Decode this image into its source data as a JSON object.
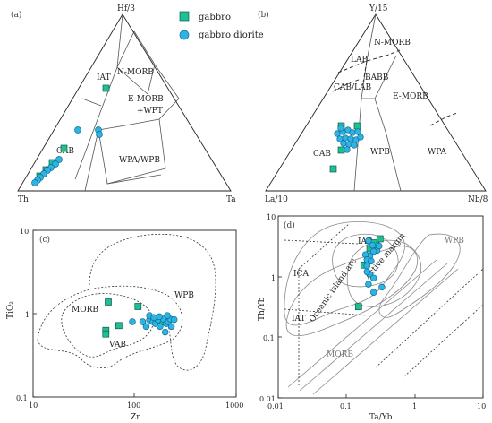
{
  "legend": {
    "gabbro": "gabbro",
    "gabbro_diorite": "gabbro diorite"
  },
  "colors": {
    "gabbro": "#1fbf94",
    "gabbro_diorite": "#2fb3e3"
  },
  "panel_a": {
    "label": "(a)",
    "apex_top": "Hf/3",
    "apex_left": "Th",
    "apex_right": "Ta",
    "fields": {
      "iat": "IAT",
      "nmorb": "N-MORB",
      "emorb": "E-MORB",
      "wpt": "+WPT",
      "cab": "CAB",
      "wpawpb": "WPA/WPB"
    }
  },
  "panel_b": {
    "label": "(b)",
    "apex_top": "Y/15",
    "apex_left": "La/10",
    "apex_right": "Nb/8",
    "fields": {
      "nmorb": "N-MORB",
      "lab": "LAB",
      "babb": "BABB",
      "cablab": "CAB/LAB",
      "emorb": "E-MORB",
      "cab": "CAB",
      "wpb": "WPB",
      "wpa": "WPA"
    }
  },
  "panel_c": {
    "label": "(c)",
    "xlabel": "Zr",
    "ylabel": "TiO₂",
    "xticks": [
      "10",
      "100",
      "1000"
    ],
    "yticks": [
      "10",
      "1",
      "0.1"
    ],
    "fields": {
      "wpb": "WPB",
      "morb": "MORB",
      "vab": "VAB"
    }
  },
  "panel_d": {
    "label": "(d)",
    "xlabel": "Ta/Yb",
    "ylabel": "Th/Yb",
    "xticks": [
      "0.01",
      "0.1",
      "1",
      "10"
    ],
    "yticks": [
      "10",
      "1",
      "0.1",
      "0.01"
    ],
    "fields": {
      "iab": "IAB",
      "active": "Active margin",
      "ica": "ICA",
      "oceanic": "Oceanic island arc",
      "iat": "IAT",
      "morb": "MORB",
      "wpb": "WPB"
    }
  },
  "chart_data": [
    {
      "type": "scatter",
      "title": "(c)",
      "xlabel": "Zr",
      "ylabel": "TiO2",
      "x_scale": "log",
      "y_scale": "log",
      "xlim": [
        10,
        1000
      ],
      "ylim": [
        0.1,
        10
      ],
      "series": [
        {
          "name": "gabbro",
          "points": [
            [
              55,
              1.38
            ],
            [
              70,
              0.72
            ],
            [
              108,
              1.22
            ],
            [
              52,
              0.63
            ],
            [
              52,
              0.57
            ],
            [
              175,
              0.85
            ],
            [
              188,
              0.8
            ]
          ]
        },
        {
          "name": "gabbro diorite",
          "points": [
            [
              120,
              0.8
            ],
            [
              130,
              0.7
            ],
            [
              140,
              0.84
            ],
            [
              152,
              0.8
            ],
            [
              160,
              0.76
            ],
            [
              170,
              0.84
            ],
            [
              178,
              0.7
            ],
            [
              192,
              0.86
            ],
            [
              205,
              0.76
            ],
            [
              215,
              0.8
            ],
            [
              225,
              0.86
            ],
            [
              230,
              0.7
            ],
            [
              200,
              0.6
            ],
            [
              175,
              0.92
            ],
            [
              245,
              0.85
            ],
            [
              95,
              0.8
            ],
            [
              210,
              0.95
            ],
            [
              140,
              0.95
            ],
            [
              155,
              0.9
            ]
          ]
        }
      ]
    },
    {
      "type": "scatter",
      "title": "(d)",
      "xlabel": "Ta/Yb",
      "ylabel": "Th/Yb",
      "x_scale": "log",
      "y_scale": "log",
      "xlim": [
        0.01,
        10
      ],
      "ylim": [
        0.01,
        10
      ],
      "series": [
        {
          "name": "gabbro",
          "points": [
            [
              0.31,
              4.2
            ],
            [
              0.22,
              2.9
            ],
            [
              0.18,
              1.55
            ],
            [
              0.15,
              0.32
            ],
            [
              0.27,
              3.3
            ],
            [
              0.25,
              3.6
            ]
          ]
        },
        {
          "name": "gabbro diorite",
          "points": [
            [
              0.21,
              3.9
            ],
            [
              0.24,
              3.3
            ],
            [
              0.28,
              2.7
            ],
            [
              0.25,
              2.6
            ],
            [
              0.22,
              2.2
            ],
            [
              0.19,
              2.3
            ],
            [
              0.2,
              1.9
            ],
            [
              0.23,
              1.8
            ],
            [
              0.2,
              1.5
            ],
            [
              0.22,
              1.1
            ],
            [
              0.25,
              0.95
            ],
            [
              0.21,
              0.75
            ],
            [
              0.33,
              0.67
            ],
            [
              0.25,
              0.55
            ],
            [
              0.3,
              3.2
            ],
            [
              0.2,
              1.2
            ]
          ]
        }
      ]
    }
  ]
}
